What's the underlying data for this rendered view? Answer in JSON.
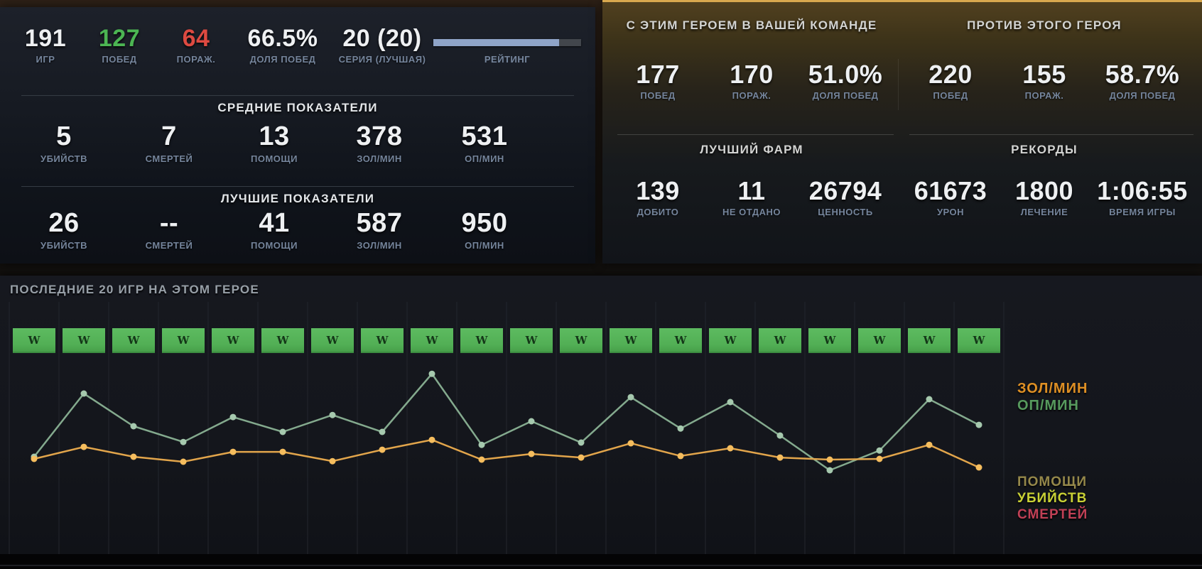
{
  "left_panel": {
    "summary": [
      {
        "value": "191",
        "label": "ИГР",
        "tone": "normal"
      },
      {
        "value": "127",
        "label": "ПОБЕД",
        "tone": "win"
      },
      {
        "value": "64",
        "label": "ПОРАЖ.",
        "tone": "loss"
      },
      {
        "value": "66.5%",
        "label": "ДОЛЯ ПОБЕД",
        "tone": "normal"
      },
      {
        "value": "20 (20)",
        "label": "СЕРИЯ (ЛУЧШАЯ)",
        "tone": "normal"
      }
    ],
    "rating": {
      "label": "РЕЙТИНГ",
      "fill_percent": 85,
      "fill_color": "#8fa4c8",
      "track_color": "#42464c"
    },
    "sections": [
      {
        "title": "СРЕДНИЕ ПОКАЗАТЕЛИ",
        "stats": [
          {
            "value": "5",
            "label": "УБИЙСТВ"
          },
          {
            "value": "7",
            "label": "СМЕРТЕЙ"
          },
          {
            "value": "13",
            "label": "ПОМОЩИ"
          },
          {
            "value": "378",
            "label": "ЗОЛ/МИН"
          },
          {
            "value": "531",
            "label": "ОП/МИН"
          }
        ]
      },
      {
        "title": "ЛУЧШИЕ ПОКАЗАТЕЛИ",
        "stats": [
          {
            "value": "26",
            "label": "УБИЙСТВ"
          },
          {
            "value": "--",
            "label": "СМЕРТЕЙ"
          },
          {
            "value": "41",
            "label": "ПОМОЩИ"
          },
          {
            "value": "587",
            "label": "ЗОЛ/МИН"
          },
          {
            "value": "950",
            "label": "ОП/МИН"
          }
        ]
      }
    ]
  },
  "right_panel": {
    "accent_color": "#d9a84e",
    "with_hero": {
      "title": "С ЭТИМ ГЕРОЕМ В ВАШЕЙ КОМАНДЕ",
      "stats": [
        {
          "value": "177",
          "label": "ПОБЕД"
        },
        {
          "value": "170",
          "label": "ПОРАЖ."
        },
        {
          "value": "51.0%",
          "label": "ДОЛЯ ПОБЕД"
        }
      ]
    },
    "against_hero": {
      "title": "ПРОТИВ ЭТОГО ГЕРОЯ",
      "stats": [
        {
          "value": "220",
          "label": "ПОБЕД"
        },
        {
          "value": "155",
          "label": "ПОРАЖ."
        },
        {
          "value": "58.7%",
          "label": "ДОЛЯ ПОБЕД"
        }
      ]
    },
    "best_farm": {
      "title": "ЛУЧШИЙ ФАРМ",
      "stats": [
        {
          "value": "139",
          "label": "ДОБИТО"
        },
        {
          "value": "11",
          "label": "НЕ ОТДАНО"
        },
        {
          "value": "26794",
          "label": "ЦЕННОСТЬ"
        }
      ]
    },
    "records": {
      "title": "РЕКОРДЫ",
      "stats": [
        {
          "value": "61673",
          "label": "УРОН"
        },
        {
          "value": "1800",
          "label": "ЛЕЧЕНИЕ"
        },
        {
          "value": "1:06:55",
          "label": "ВРЕМЯ ИГРЫ"
        }
      ]
    }
  },
  "recent": {
    "title": "ПОСЛЕДНИЕ 20 ИГР НА ЭТОМ ГЕРОЕ",
    "results": [
      "W",
      "W",
      "W",
      "W",
      "W",
      "W",
      "W",
      "W",
      "W",
      "W",
      "W",
      "W",
      "W",
      "W",
      "W",
      "W",
      "W",
      "W",
      "W",
      "W"
    ],
    "result_box_color": "#52af55",
    "legend_top": [
      {
        "label": "ЗОЛ/МИН",
        "color": "#de8f24"
      },
      {
        "label": "ОП/МИН",
        "color": "#579a5e"
      }
    ],
    "legend_bottom": [
      {
        "label": "ПОМОЩИ",
        "color": "#95884a"
      },
      {
        "label": "УБИЙСТВ",
        "color": "#c9d135"
      },
      {
        "label": "СМЕРТЕЙ",
        "color": "#c04055"
      }
    ]
  },
  "chart_data": {
    "type": "line",
    "title": "ПОСЛЕДНИЕ 20 ИГР НА ЭТОМ ГЕРОЕ",
    "x": [
      1,
      2,
      3,
      4,
      5,
      6,
      7,
      8,
      9,
      10,
      11,
      12,
      13,
      14,
      15,
      16,
      17,
      18,
      19,
      20
    ],
    "x_axis_label": "",
    "y_axis_labels": "none (unlabeled axis, values estimated from avg 378 gold/min and 531 xp/min)",
    "grid": "vertical lines only",
    "legend_position": "right",
    "match_results": [
      "W",
      "W",
      "W",
      "W",
      "W",
      "W",
      "W",
      "W",
      "W",
      "W",
      "W",
      "W",
      "W",
      "W",
      "W",
      "W",
      "W",
      "W",
      "W",
      "W"
    ],
    "series": [
      {
        "name": "ЗОЛ/МИН",
        "line_color": "#e2a54b",
        "dot_color": "#f5bd5e",
        "values": [
          354,
          417,
          365,
          339,
          391,
          391,
          342,
          402,
          454,
          350,
          380,
          361,
          436,
          369,
          410,
          361,
          350,
          354,
          428,
          309
        ]
      },
      {
        "name": "ОП/МИН",
        "line_color": "#84aa8e",
        "dot_color": "#a6c9ae",
        "values": [
          365,
          698,
          526,
          443,
          574,
          496,
          585,
          496,
          802,
          428,
          552,
          440,
          679,
          514,
          653,
          477,
          294,
          398,
          668,
          533
        ]
      }
    ]
  }
}
